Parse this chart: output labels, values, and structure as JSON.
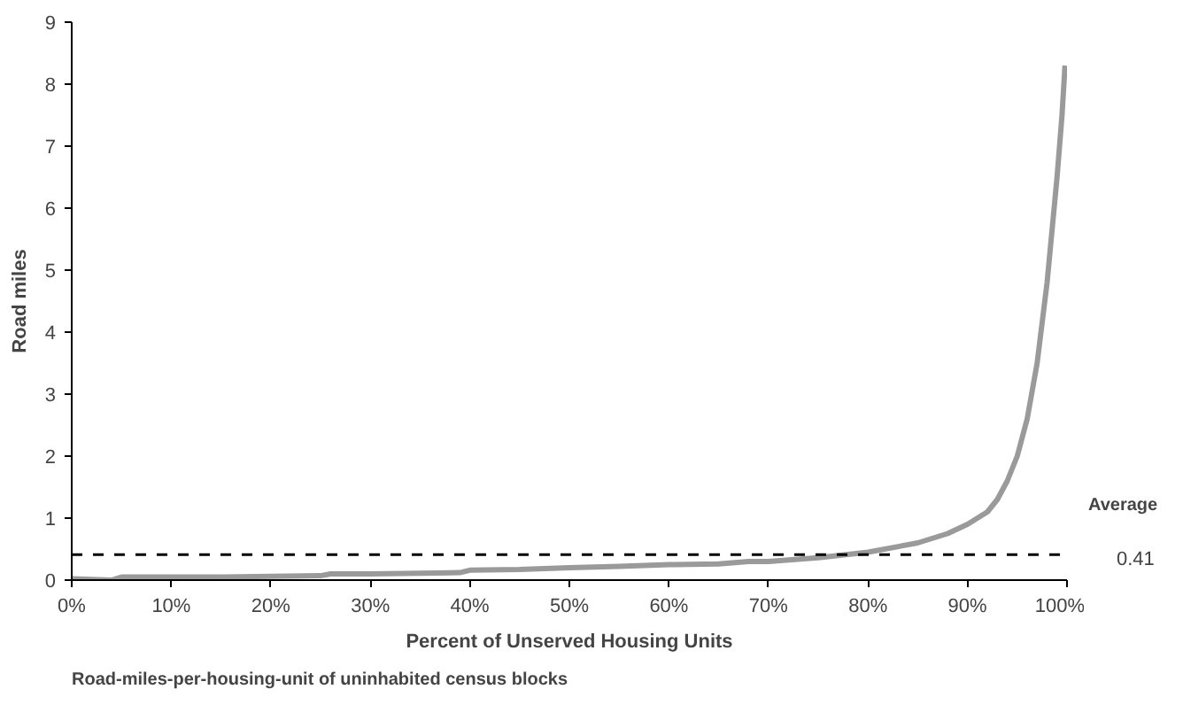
{
  "chart_data": {
    "type": "line",
    "xlabel": "Percent of Unserved Housing Units",
    "ylabel": "Road miles",
    "x": [
      0,
      2,
      4,
      5,
      10,
      15,
      20,
      25,
      26,
      30,
      35,
      39,
      40,
      45,
      50,
      55,
      60,
      65,
      68,
      70,
      75,
      80,
      85,
      88,
      90,
      92,
      93,
      94,
      95,
      96,
      97,
      98,
      99,
      99.5,
      99.8
    ],
    "series": [
      {
        "color": "#9a9a9a",
        "values": [
          0.02,
          0.01,
          0.0,
          0.05,
          0.05,
          0.05,
          0.06,
          0.07,
          0.1,
          0.1,
          0.11,
          0.12,
          0.16,
          0.17,
          0.2,
          0.22,
          0.25,
          0.26,
          0.3,
          0.3,
          0.36,
          0.45,
          0.6,
          0.75,
          0.9,
          1.1,
          1.3,
          1.6,
          2.0,
          2.6,
          3.5,
          4.8,
          6.5,
          7.5,
          8.3
        ]
      }
    ],
    "xlim": [
      0,
      100
    ],
    "ylim": [
      0,
      9
    ],
    "xticks": [
      {
        "value": 0,
        "label": "0%"
      },
      {
        "value": 10,
        "label": "10%"
      },
      {
        "value": 20,
        "label": "20%"
      },
      {
        "value": 30,
        "label": "30%"
      },
      {
        "value": 40,
        "label": "40%"
      },
      {
        "value": 50,
        "label": "50%"
      },
      {
        "value": 60,
        "label": "60%"
      },
      {
        "value": 70,
        "label": "70%"
      },
      {
        "value": 80,
        "label": "80%"
      },
      {
        "value": 90,
        "label": "90%"
      },
      {
        "value": 100,
        "label": "100%"
      }
    ],
    "yticks": [
      0,
      1,
      2,
      3,
      4,
      5,
      6,
      7,
      8,
      9
    ],
    "ref_lines": [
      {
        "axis": "y",
        "value": 0.41,
        "label": "0.41",
        "color": "#000000",
        "line_style": "dashed"
      }
    ],
    "annotations": [
      "Average",
      "Road-miles-per-housing-unit of uninhabited census blocks"
    ],
    "grid": false,
    "marker": "none",
    "line_style": "solid"
  }
}
